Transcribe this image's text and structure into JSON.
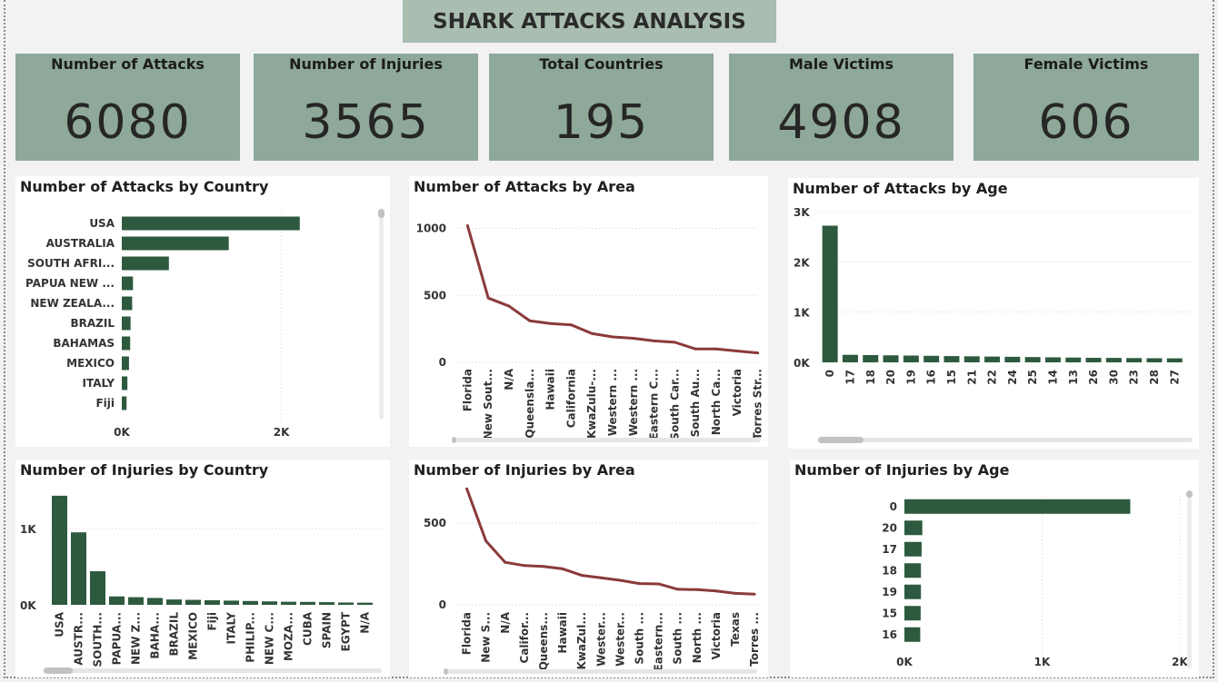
{
  "title": "SHARK ATTACKS ANALYSIS",
  "colors": {
    "bar": "#2d5a3f",
    "line": "#8b3a3a",
    "kpi_bg": "#8ea899",
    "title_bg": "#a9bdb1"
  },
  "kpis": [
    {
      "label": "Number of Attacks",
      "value": "6080"
    },
    {
      "label": "Number of Injuries",
      "value": "3565"
    },
    {
      "label": "Total Countries",
      "value": "195"
    },
    {
      "label": "Male Victims",
      "value": "4908"
    },
    {
      "label": "Female Victims",
      "value": "606"
    }
  ],
  "chart_data": [
    {
      "id": "attacks-country",
      "type": "bar",
      "orientation": "horizontal",
      "title": "Number of Attacks by Country",
      "categories": [
        "USA",
        "AUSTRALIA",
        "SOUTH AFRI...",
        "PAPUA NEW ...",
        "NEW ZEALA...",
        "BRAZIL",
        "BAHAMAS",
        "MEXICO",
        "ITALY",
        "Fiji"
      ],
      "values": [
        2230,
        1340,
        590,
        140,
        130,
        110,
        105,
        90,
        70,
        60
      ],
      "xlim": [
        0,
        3200
      ],
      "ticks": [
        {
          "v": 0,
          "t": "0K"
        },
        {
          "v": 2000,
          "t": "2K"
        }
      ]
    },
    {
      "id": "attacks-area",
      "type": "line",
      "title": "Number of Attacks by Area",
      "categories": [
        "Florida",
        "New Sout...",
        "N/A",
        "Queensla...",
        "Hawaii",
        "California",
        "KwaZulu-...",
        "Western ...",
        "Western ...",
        "Eastern C...",
        "South Car...",
        "South Au...",
        "North Ca...",
        "Victoria",
        "Torres Str..."
      ],
      "values": [
        1020,
        480,
        420,
        310,
        290,
        280,
        215,
        190,
        180,
        160,
        150,
        100,
        100,
        85,
        70
      ],
      "ylim": [
        0,
        1200
      ],
      "ticks": [
        {
          "v": 0,
          "t": "0"
        },
        {
          "v": 500,
          "t": "500"
        },
        {
          "v": 1000,
          "t": "1000"
        }
      ]
    },
    {
      "id": "attacks-age",
      "type": "bar",
      "orientation": "vertical",
      "title": "Number of Attacks by Age",
      "categories": [
        "0",
        "17",
        "18",
        "20",
        "19",
        "16",
        "15",
        "21",
        "22",
        "24",
        "25",
        "14",
        "13",
        "26",
        "30",
        "23",
        "28",
        "27"
      ],
      "values": [
        2720,
        150,
        145,
        140,
        135,
        130,
        125,
        120,
        115,
        110,
        105,
        100,
        95,
        90,
        88,
        85,
        82,
        80
      ],
      "ylim": [
        0,
        3000
      ],
      "ticks": [
        {
          "v": 0,
          "t": "0K"
        },
        {
          "v": 1000,
          "t": "1K"
        },
        {
          "v": 2000,
          "t": "2K"
        },
        {
          "v": 3000,
          "t": "3K"
        }
      ]
    },
    {
      "id": "injuries-country",
      "type": "bar",
      "orientation": "vertical",
      "title": "Number of Injuries by Country",
      "categories": [
        "USA",
        "AUSTR...",
        "SOUTH...",
        "PAPUA...",
        "NEW Z...",
        "BAHA...",
        "BRAZIL",
        "MEXICO",
        "Fiji",
        "ITALY",
        "PHILIP...",
        "NEW C...",
        "MOZA...",
        "CUBA",
        "SPAIN",
        "EGYPT",
        "N/A"
      ],
      "values": [
        1430,
        950,
        440,
        110,
        100,
        90,
        70,
        65,
        60,
        55,
        50,
        45,
        40,
        38,
        35,
        30,
        28
      ],
      "ylim": [
        0,
        1500
      ],
      "ticks": [
        {
          "v": 0,
          "t": "0K"
        },
        {
          "v": 1000,
          "t": "1K"
        }
      ]
    },
    {
      "id": "injuries-area",
      "type": "line",
      "title": "Number of Injuries by Area",
      "categories": [
        "Florida",
        "New S...",
        "N/A",
        "Califor...",
        "Queens...",
        "Hawaii",
        "KwaZul...",
        "Wester...",
        "Wester...",
        "South ...",
        "Eastern...",
        "South ...",
        "North ...",
        "Victoria",
        "Texas",
        "Torres ..."
      ],
      "values": [
        710,
        390,
        260,
        240,
        235,
        220,
        180,
        165,
        150,
        130,
        128,
        95,
        93,
        85,
        70,
        65
      ],
      "ylim": [
        0,
        800
      ],
      "ticks": [
        {
          "v": 0,
          "t": "0"
        },
        {
          "v": 500,
          "t": "500"
        }
      ]
    },
    {
      "id": "injuries-age",
      "type": "bar",
      "orientation": "horizontal",
      "title": "Number of Injuries by Age",
      "categories": [
        "0",
        "20",
        "17",
        "18",
        "19",
        "15",
        "16"
      ],
      "values": [
        1640,
        130,
        125,
        120,
        120,
        118,
        115
      ],
      "xlim": [
        0,
        2000
      ],
      "ticks": [
        {
          "v": 0,
          "t": "0K"
        },
        {
          "v": 1000,
          "t": "1K"
        },
        {
          "v": 2000,
          "t": "2K"
        }
      ]
    }
  ]
}
